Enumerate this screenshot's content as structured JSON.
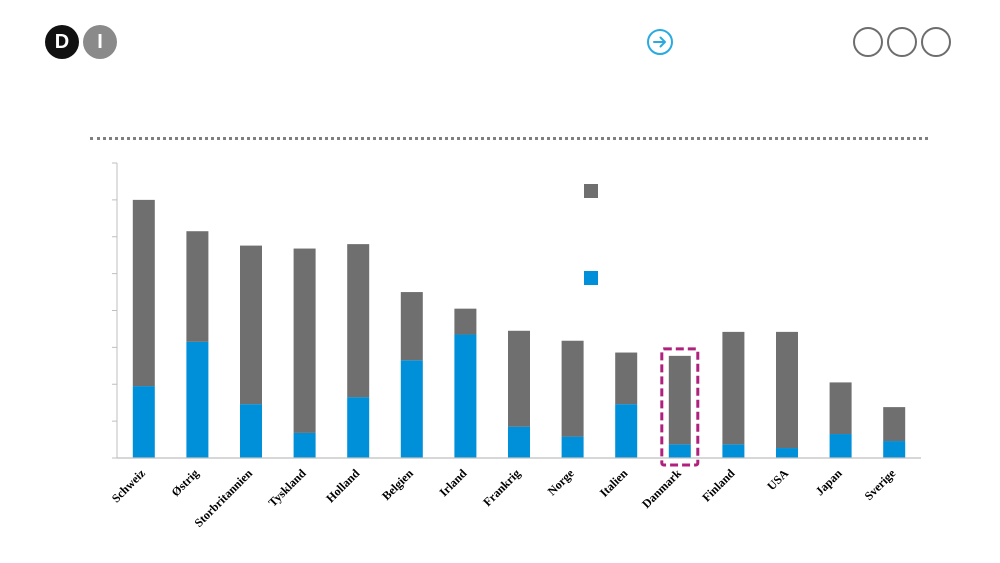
{
  "header": {
    "logo_letters": [
      "D",
      "I"
    ],
    "next_icon": "arrow-right-circle-icon",
    "accent_color": "#29abe2",
    "nav_dot_count": 3
  },
  "chart_data": {
    "type": "bar",
    "stacked": true,
    "categories": [
      "Schweiz",
      "Østrig",
      "Storbritannien",
      "Tyskland",
      "Holland",
      "Belgien",
      "Irland",
      "Frankrig",
      "Norge",
      "Italien",
      "Danmark",
      "Finland",
      "USA",
      "Japan",
      "Sverige"
    ],
    "series": [
      {
        "color": "#0090d9",
        "values": [
          19.5,
          31.5,
          14.6,
          6.8,
          16.5,
          26.5,
          33.5,
          8.5,
          5.8,
          14.6,
          3.7,
          3.7,
          2.7,
          6.5,
          4.6
        ]
      },
      {
        "color": "#6f6f6f",
        "values": [
          50.5,
          30,
          43,
          50,
          41.5,
          18.5,
          7,
          26,
          26,
          14,
          24,
          30.5,
          31.5,
          14,
          9.2
        ]
      }
    ],
    "ylim": [
      0,
      80
    ],
    "yticks": [
      0,
      10,
      20,
      30,
      40,
      50,
      60,
      70,
      80
    ],
    "highlight_category": "Danmark",
    "highlight_color": "#b0217e",
    "legend": {
      "placement": "top-right",
      "entries": 2
    }
  }
}
